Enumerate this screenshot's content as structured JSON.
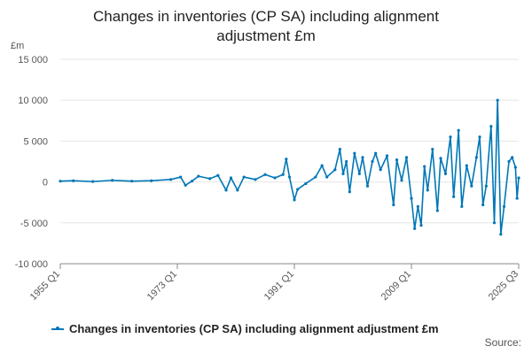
{
  "title_line1": "Changes in inventories (CP SA) including alignment",
  "title_line2": "adjustment £m",
  "unit_label": "£m",
  "source_label": "Source:",
  "colors": {
    "series": "#0077b6",
    "grid": "#e6e6e6",
    "axis": "#888888"
  },
  "chart_data": {
    "type": "line",
    "title": "Changes in inventories (CP SA) including alignment adjustment £m",
    "ylabel": "£m",
    "ylim": [
      -10000,
      15000
    ],
    "yticks": [
      15000,
      10000,
      5000,
      0,
      -5000,
      -10000
    ],
    "ytick_labels": [
      "15 000",
      "10 000",
      "5 000",
      "0",
      "-5 000",
      "-10 000"
    ],
    "xrange": [
      "1955 Q1",
      "2025 Q3"
    ],
    "xticks": [
      "1955 Q1",
      "1973 Q1",
      "1991 Q1",
      "2009 Q1",
      "2025 Q3"
    ],
    "grid": true,
    "legend_placement": "bottom",
    "series": [
      {
        "name": "Changes in inventories (CP SA) including alignment adjustment £m",
        "points": [
          [
            "1955 Q1",
            100
          ],
          [
            "1957 Q1",
            150
          ],
          [
            "1960 Q1",
            50
          ],
          [
            "1963 Q1",
            200
          ],
          [
            "1966 Q1",
            100
          ],
          [
            "1969 Q1",
            150
          ],
          [
            "1972 Q1",
            300
          ],
          [
            "1973 Q3",
            600
          ],
          [
            "1974 Q2",
            -400
          ],
          [
            "1975 Q2",
            100
          ],
          [
            "1976 Q2",
            700
          ],
          [
            "1978 Q1",
            400
          ],
          [
            "1979 Q2",
            800
          ],
          [
            "1980 Q3",
            -1000
          ],
          [
            "1981 Q2",
            500
          ],
          [
            "1982 Q2",
            -1000
          ],
          [
            "1983 Q2",
            600
          ],
          [
            "1985 Q1",
            300
          ],
          [
            "1986 Q3",
            900
          ],
          [
            "1988 Q1",
            500
          ],
          [
            "1989 Q2",
            900
          ],
          [
            "1989 Q4",
            2800
          ],
          [
            "1990 Q2",
            600
          ],
          [
            "1991 Q1",
            -2200
          ],
          [
            "1991 Q3",
            -900
          ],
          [
            "1992 Q4",
            -200
          ],
          [
            "1994 Q2",
            600
          ],
          [
            "1995 Q2",
            2000
          ],
          [
            "1996 Q1",
            600
          ],
          [
            "1997 Q2",
            1500
          ],
          [
            "1998 Q1",
            4000
          ],
          [
            "1998 Q3",
            1000
          ],
          [
            "1999 Q1",
            2500
          ],
          [
            "1999 Q3",
            -1200
          ],
          [
            "2000 Q2",
            3500
          ],
          [
            "2001 Q1",
            1000
          ],
          [
            "2001 Q3",
            3000
          ],
          [
            "2002 Q2",
            -500
          ],
          [
            "2003 Q1",
            2500
          ],
          [
            "2003 Q3",
            3500
          ],
          [
            "2004 Q2",
            1500
          ],
          [
            "2005 Q2",
            3200
          ],
          [
            "2006 Q2",
            -2800
          ],
          [
            "2006 Q4",
            2700
          ],
          [
            "2007 Q3",
            200
          ],
          [
            "2008 Q2",
            3000
          ],
          [
            "2009 Q1",
            -2000
          ],
          [
            "2009 Q3",
            -5700
          ],
          [
            "2010 Q1",
            -3000
          ],
          [
            "2010 Q3",
            -5300
          ],
          [
            "2011 Q1",
            1900
          ],
          [
            "2011 Q3",
            -1000
          ],
          [
            "2012 Q2",
            4000
          ],
          [
            "2013 Q1",
            -3500
          ],
          [
            "2013 Q3",
            2900
          ],
          [
            "2014 Q2",
            1000
          ],
          [
            "2015 Q1",
            5500
          ],
          [
            "2015 Q3",
            -1800
          ],
          [
            "2016 Q2",
            6300
          ],
          [
            "2016 Q4",
            -3000
          ],
          [
            "2017 Q3",
            2000
          ],
          [
            "2018 Q2",
            -500
          ],
          [
            "2019 Q1",
            3000
          ],
          [
            "2019 Q3",
            5500
          ],
          [
            "2020 Q1",
            -2800
          ],
          [
            "2020 Q3",
            -500
          ],
          [
            "2021 Q2",
            6800
          ],
          [
            "2021 Q4",
            -5000
          ],
          [
            "2022 Q2",
            10000
          ],
          [
            "2022 Q4",
            -6400
          ],
          [
            "2023 Q2",
            -3000
          ],
          [
            "2024 Q1",
            2500
          ],
          [
            "2024 Q3",
            3000
          ],
          [
            "2025 Q1",
            1800
          ],
          [
            "2025 Q2",
            -2000
          ],
          [
            "2025 Q3",
            500
          ]
        ]
      }
    ]
  }
}
